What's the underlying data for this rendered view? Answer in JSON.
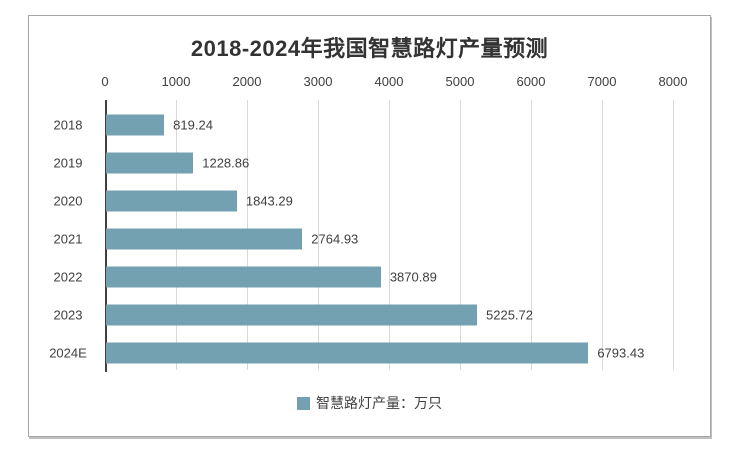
{
  "chart": {
    "title": "2018-2024年我国智慧路灯产量预测",
    "legend_label": "智慧路灯产量：万只"
  },
  "chart_data": {
    "type": "bar",
    "orientation": "horizontal",
    "title": "2018-2024年我国智慧路灯产量预测",
    "categories": [
      "2018",
      "2019",
      "2020",
      "2021",
      "2022",
      "2023",
      "2024E"
    ],
    "series": [
      {
        "name": "智慧路灯产量：万只",
        "values": [
          819.24,
          1228.86,
          1843.29,
          2764.93,
          3870.89,
          5225.72,
          6793.43
        ]
      }
    ],
    "value_labels": [
      "819.24",
      "1228.86",
      "1843.29",
      "2764.93",
      "3870.89",
      "5225.72",
      "6793.43"
    ],
    "x_ticks": [
      "0",
      "1000",
      "2000",
      "3000",
      "4000",
      "5000",
      "6000",
      "7000",
      "8000"
    ],
    "xlim": [
      0,
      8000
    ],
    "xlabel": "",
    "ylabel": "",
    "grid": true,
    "legend_position": "bottom",
    "data_labels_shown": true,
    "colors": {
      "bar": "#74a1b2",
      "gridline": "#d9d9d9",
      "axis_line": "#3f3f3f",
      "text": "#404040",
      "title": "#333333",
      "panel_border": "#a6a6a6",
      "background": "#ffffff"
    }
  }
}
